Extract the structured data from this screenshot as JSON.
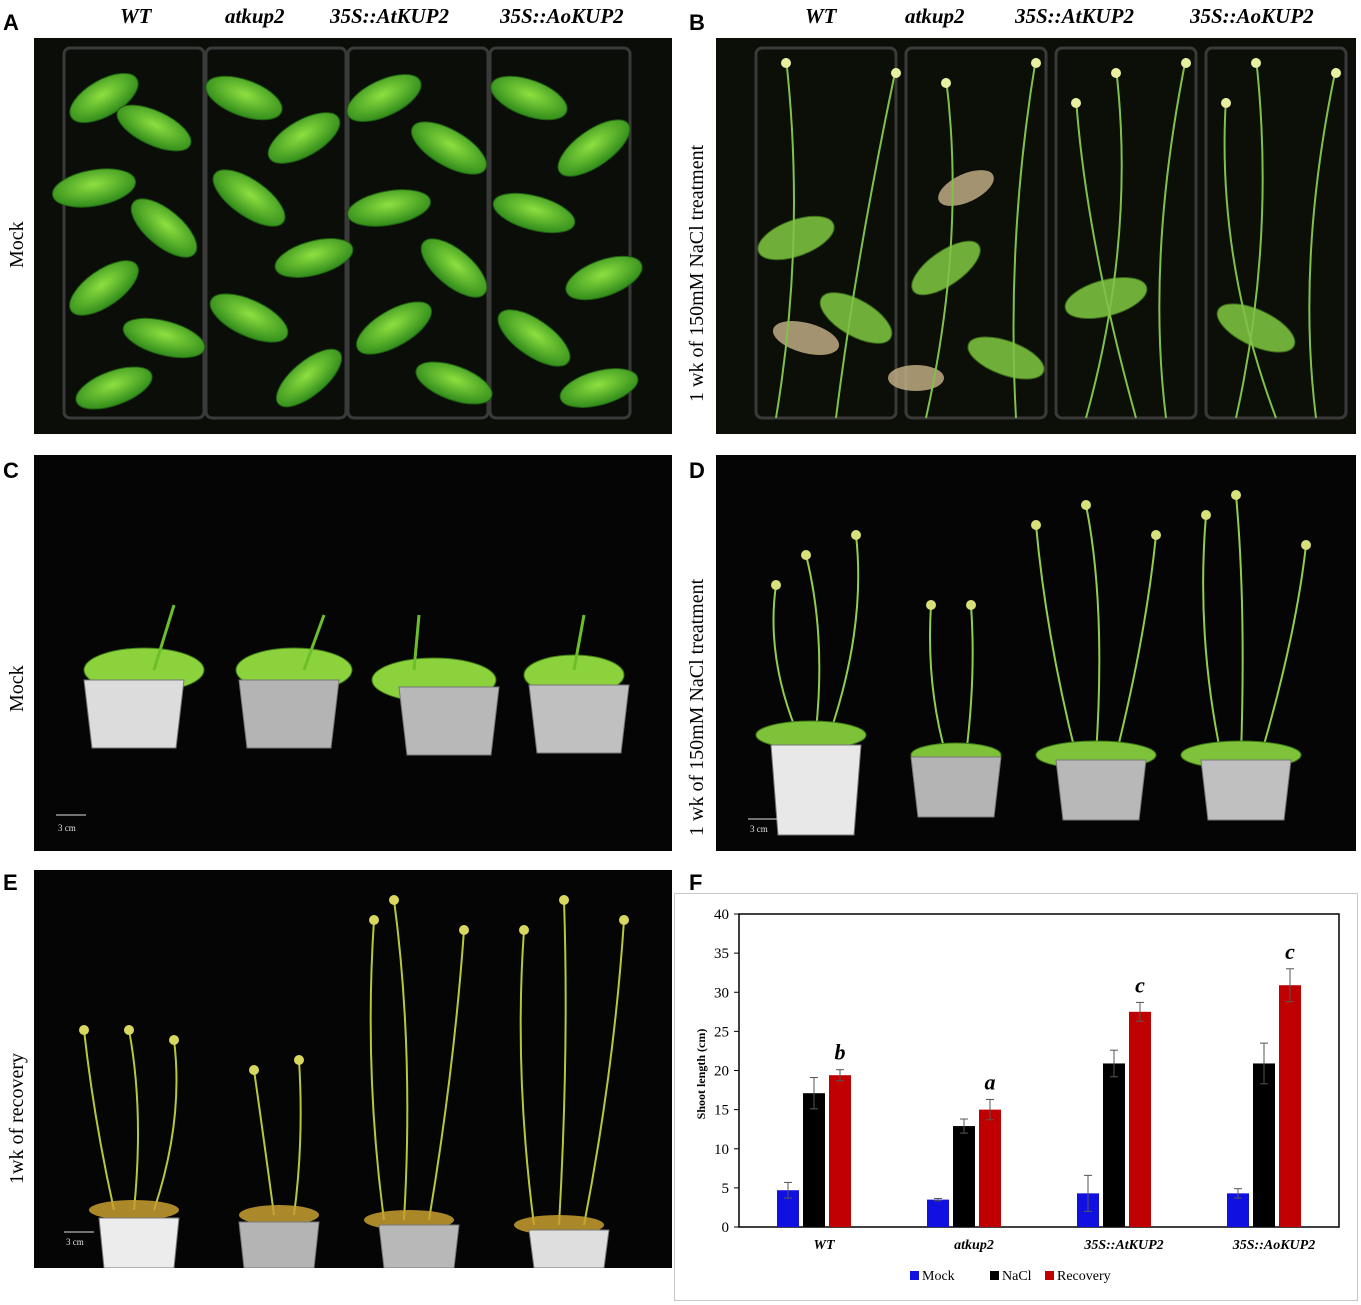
{
  "panels": {
    "A": {
      "letter": "A",
      "row_label": "Mock"
    },
    "B": {
      "letter": "B",
      "row_label": "1 wk of 150mM NaCl treatment"
    },
    "C": {
      "letter": "C",
      "row_label": "Mock",
      "scale": "3 cm"
    },
    "D": {
      "letter": "D",
      "row_label": "1 wk of 150mM NaCl treatment",
      "scale": "3 cm"
    },
    "E": {
      "letter": "E",
      "row_label": "1wk of recovery",
      "scale": "3 cm"
    },
    "F": {
      "letter": "F"
    }
  },
  "genotypes": [
    "WT",
    "atkup2",
    "35S::AtKUP2",
    "35S::AoKUP2"
  ],
  "chart_data": {
    "type": "bar",
    "categories": [
      "WT",
      "atkup2",
      "35S::AtKUP2",
      "35S::AoKUP2"
    ],
    "series": [
      {
        "name": "Mock",
        "color": "#1010e0",
        "values": [
          4.7,
          3.5,
          4.3,
          4.3
        ],
        "errors": [
          1.0,
          0.15,
          2.3,
          0.6
        ]
      },
      {
        "name": "NaCl",
        "color": "#000000",
        "values": [
          17.1,
          12.9,
          20.9,
          20.9
        ],
        "errors": [
          2.0,
          0.9,
          1.7,
          2.6
        ]
      },
      {
        "name": "Recovery",
        "color": "#c00000",
        "values": [
          19.4,
          15.0,
          27.5,
          30.9
        ],
        "errors": [
          0.7,
          1.3,
          1.2,
          2.1
        ]
      }
    ],
    "significance": [
      "b",
      "a",
      "c",
      "c"
    ],
    "ylabel": "Shoot length (cm)",
    "ylim": [
      0,
      40
    ],
    "yticks": [
      0,
      5,
      10,
      15,
      20,
      25,
      30,
      35,
      40
    ],
    "legend_position": "bottom"
  }
}
